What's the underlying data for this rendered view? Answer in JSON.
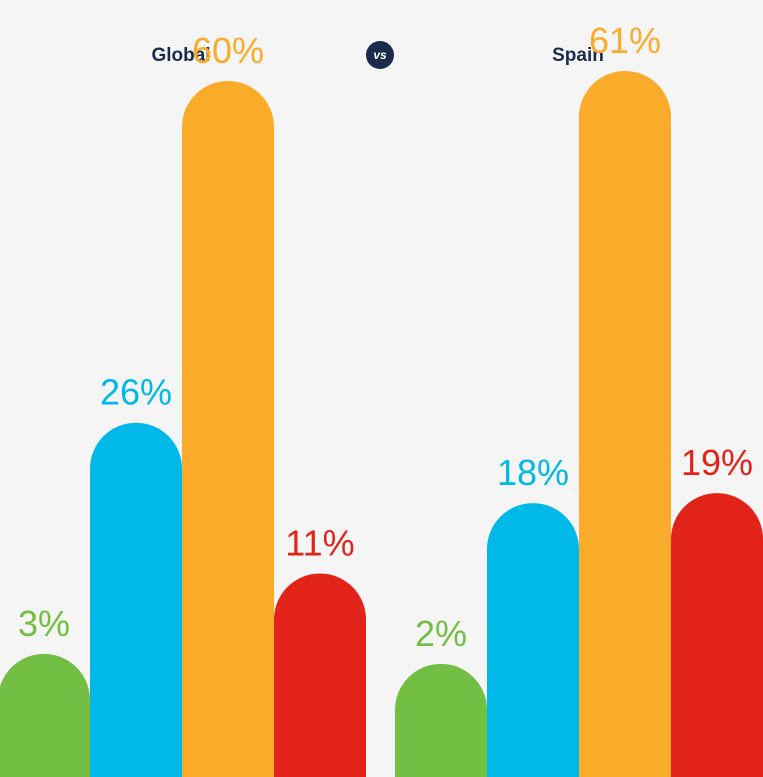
{
  "header": {
    "left_title": "Global",
    "vs_label": "vs",
    "right_title": "Spain"
  },
  "colors": {
    "background": "#f5f5f5",
    "title": "#1a2b4c",
    "vs_badge": "#1a2b4c",
    "series": [
      "#72bf44",
      "#00b9e8",
      "#fbab2a",
      "#e2231a"
    ]
  },
  "chart_data": {
    "type": "bar",
    "ylim": [
      0,
      100
    ],
    "groups": [
      {
        "name": "Global",
        "values": [
          3,
          26,
          60,
          11
        ],
        "labels": [
          "3%",
          "26%",
          "60%",
          "11%"
        ]
      },
      {
        "name": "Spain",
        "values": [
          2,
          18,
          61,
          19
        ],
        "labels": [
          "2%",
          "18%",
          "61%",
          "19%"
        ]
      }
    ]
  }
}
